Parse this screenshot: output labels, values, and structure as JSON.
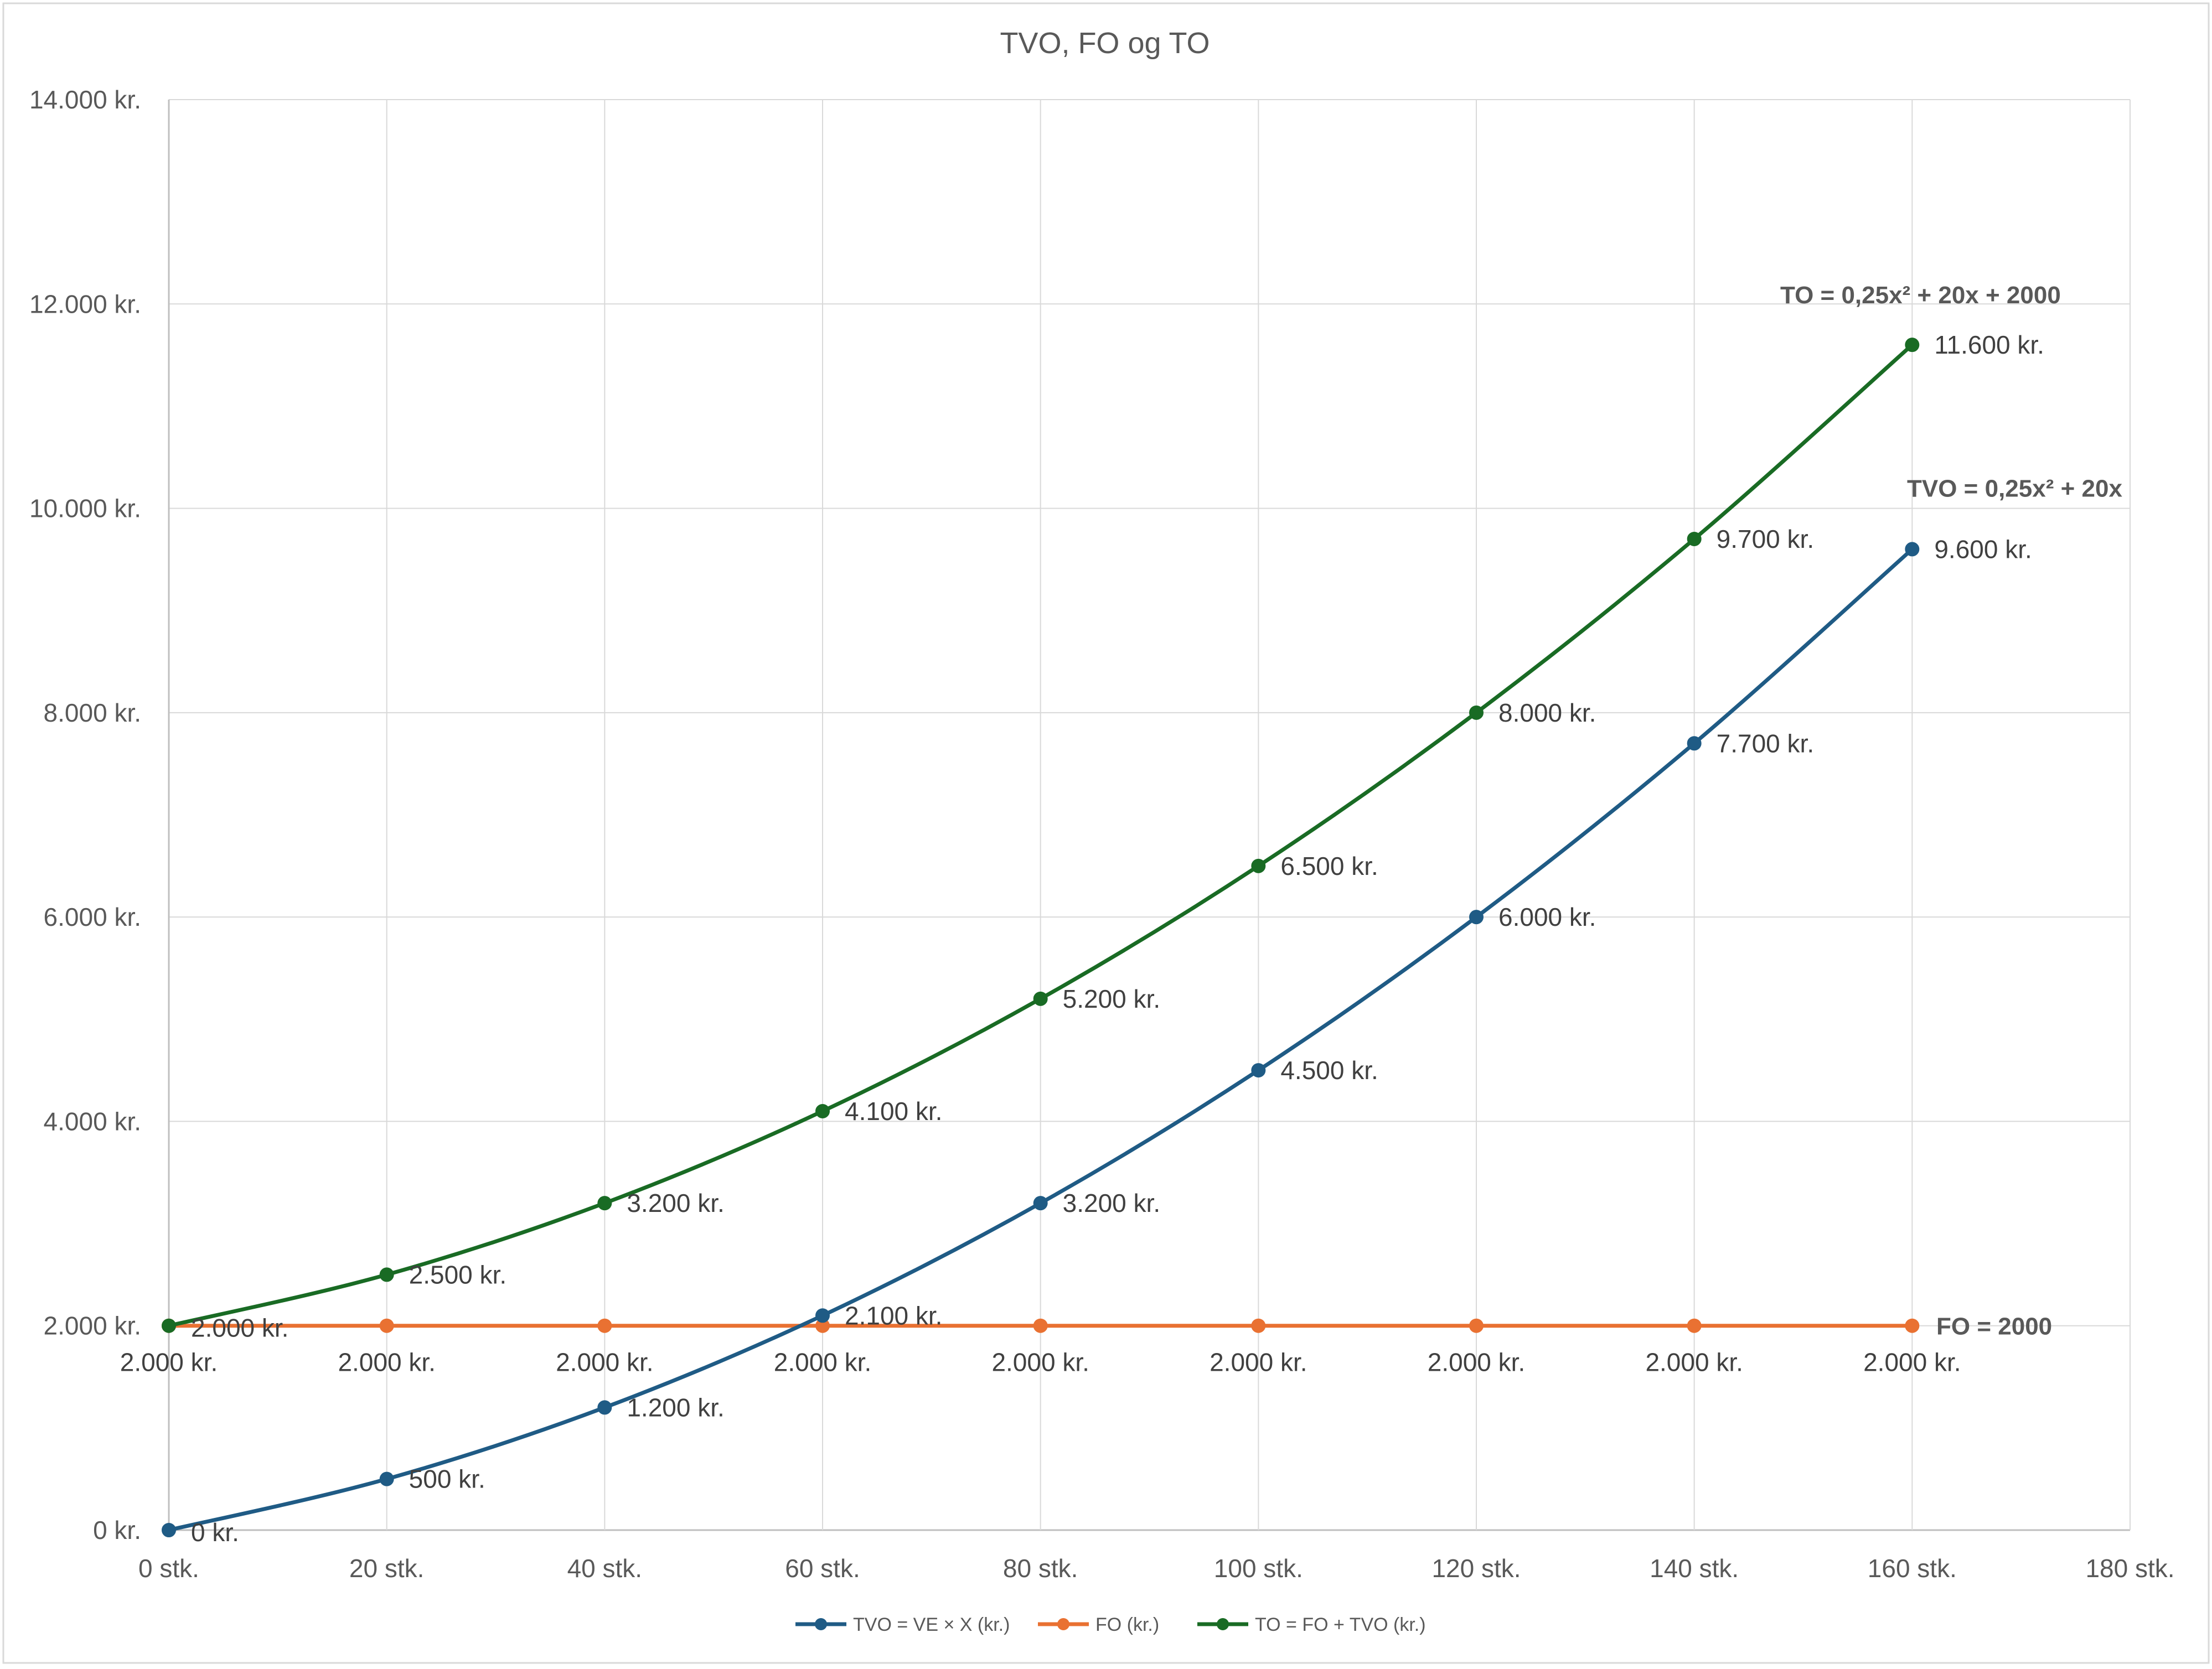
{
  "chart_data": {
    "type": "line",
    "title": "TVO, FO og TO",
    "xlabel": "",
    "ylabel": "",
    "xlim": [
      0,
      180
    ],
    "ylim": [
      0,
      14000
    ],
    "grid": true,
    "legend_position": "bottom",
    "x_ticks": [
      "0 stk.",
      "20 stk.",
      "40 stk.",
      "60 stk.",
      "80 stk.",
      "100 stk.",
      "120 stk.",
      "140 stk.",
      "160 stk.",
      "180 stk."
    ],
    "y_ticks": [
      "0 kr.",
      "2.000 kr.",
      "4.000 kr.",
      "6.000 kr.",
      "8.000 kr.",
      "10.000 kr.",
      "12.000 kr.",
      "14.000 kr."
    ],
    "x": [
      0,
      20,
      40,
      60,
      80,
      100,
      120,
      140,
      160
    ],
    "series": [
      {
        "name": "TVO = VE × X (kr.)",
        "color": "#1f5b85",
        "values": [
          0,
          500,
          1200,
          2100,
          3200,
          4500,
          6000,
          7700,
          9600
        ],
        "labels": [
          "0 kr.",
          "500 kr.",
          "1.200 kr.",
          "2.100 kr.",
          "3.200 kr.",
          "4.500 kr.",
          "6.000 kr.",
          "7.700 kr.",
          "9.600 kr."
        ],
        "trendline_label": "TVO = 0,25x² + 20x"
      },
      {
        "name": "FO (kr.)",
        "color": "#e97132",
        "values": [
          2000,
          2000,
          2000,
          2000,
          2000,
          2000,
          2000,
          2000,
          2000
        ],
        "labels": [
          "2.000 kr.",
          "2.000 kr.",
          "2.000 kr.",
          "2.000 kr.",
          "2.000 kr.",
          "2.000 kr.",
          "2.000 kr.",
          "2.000 kr.",
          "2.000 kr."
        ],
        "trendline_label": "FO = 2000"
      },
      {
        "name": "TO = FO + TVO (kr.)",
        "color": "#196b24",
        "values": [
          2000,
          2500,
          3200,
          4100,
          5200,
          6500,
          8000,
          9700,
          11600
        ],
        "labels": [
          "2.000 kr.",
          "2.500 kr.",
          "3.200 kr.",
          "4.100 kr.",
          "5.200 kr.",
          "6.500 kr.",
          "8.000 kr.",
          "9.700 kr.",
          "11.600 kr."
        ],
        "trendline_label": "TO = 0,25x² + 20x + 2000"
      }
    ]
  }
}
